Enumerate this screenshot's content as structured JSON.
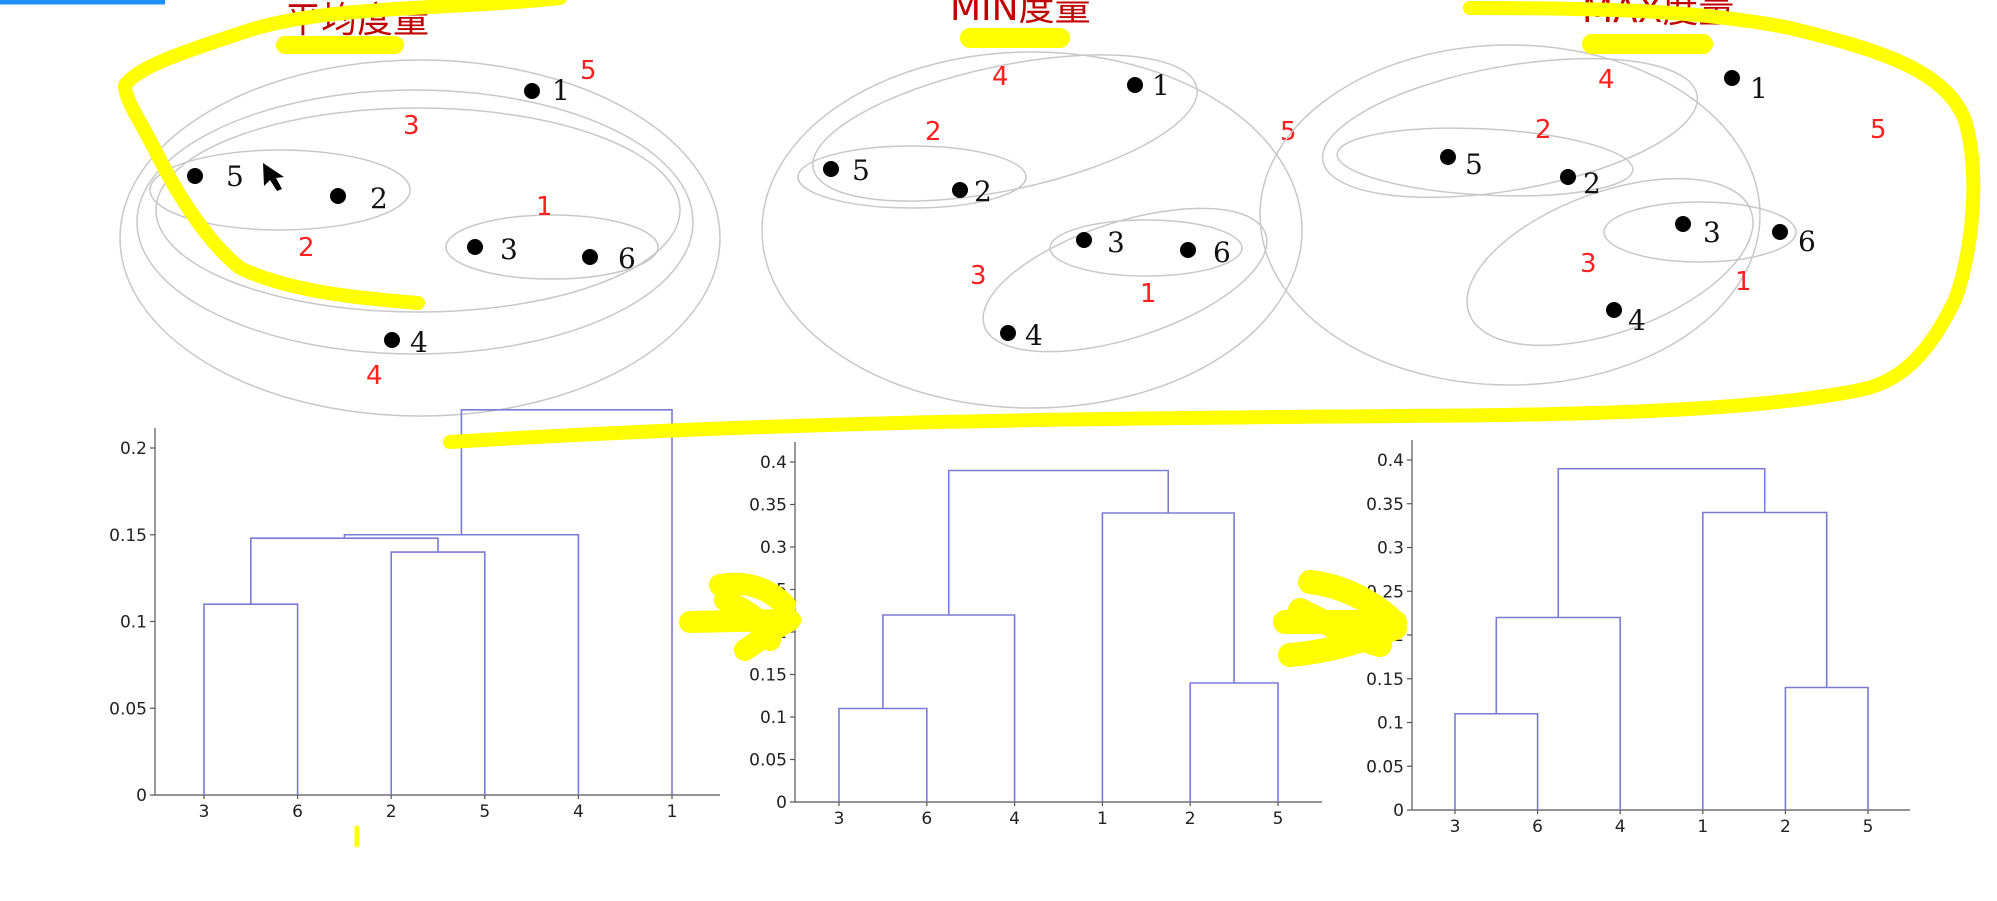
{
  "titles": [
    "平均度量",
    "MIN度量",
    "MAX度量"
  ],
  "panels": [
    {
      "name": "average",
      "points": [
        "1",
        "5",
        "2",
        "3",
        "6",
        "4"
      ],
      "merge_order_labels": [
        "5",
        "3",
        "1",
        "2",
        "4"
      ]
    },
    {
      "name": "min",
      "points": [
        "1",
        "5",
        "2",
        "3",
        "6",
        "4"
      ],
      "merge_order_labels": [
        "4",
        "2",
        "5",
        "3",
        "1"
      ]
    },
    {
      "name": "max",
      "points": [
        "1",
        "5",
        "2",
        "3",
        "6",
        "4"
      ],
      "merge_order_labels": [
        "4",
        "2",
        "5",
        "3",
        "1"
      ]
    }
  ],
  "chart_data": [
    {
      "type": "dendrogram",
      "leaves": [
        "3",
        "6",
        "2",
        "5",
        "4",
        "1"
      ],
      "yticks": [
        "0",
        "0.05",
        "0.1",
        "0.15",
        "0.2"
      ],
      "ylim": [
        0,
        0.2
      ],
      "merges": [
        {
          "a": "3",
          "b": "6",
          "height": 0.11
        },
        {
          "a": "2",
          "b": "5",
          "height": 0.14
        },
        {
          "a": "3,6",
          "b": "2,5",
          "height": 0.148
        },
        {
          "a": "3,6,2,5",
          "b": "4",
          "height": 0.15
        },
        {
          "a": "3,6,2,5,4",
          "b": "1",
          "height": 0.222
        }
      ]
    },
    {
      "type": "dendrogram",
      "leaves": [
        "3",
        "6",
        "4",
        "1",
        "2",
        "5"
      ],
      "yticks": [
        "0",
        "0.05",
        "0.1",
        "0.15",
        "0.2",
        "0.25",
        "0.3",
        "0.35",
        "0.4"
      ],
      "ylim": [
        0,
        0.4
      ],
      "merges": [
        {
          "a": "3",
          "b": "6",
          "height": 0.11
        },
        {
          "a": "2",
          "b": "5",
          "height": 0.14
        },
        {
          "a": "3,6",
          "b": "4",
          "height": 0.22
        },
        {
          "a": "1",
          "b": "2,5",
          "height": 0.34
        },
        {
          "a": "3,6,4",
          "b": "1,2,5",
          "height": 0.39
        }
      ]
    },
    {
      "type": "dendrogram",
      "leaves": [
        "3",
        "6",
        "4",
        "1",
        "2",
        "5"
      ],
      "yticks": [
        "0",
        "0.05",
        "0.1",
        "0.15",
        "0.2",
        "0.25",
        "0.3",
        "0.35",
        "0.4"
      ],
      "ylim": [
        0,
        0.4
      ],
      "merges": [
        {
          "a": "3",
          "b": "6",
          "height": 0.11
        },
        {
          "a": "2",
          "b": "5",
          "height": 0.14
        },
        {
          "a": "3,6",
          "b": "4",
          "height": 0.22
        },
        {
          "a": "1",
          "b": "2,5",
          "height": 0.34
        },
        {
          "a": "3,6,4",
          "b": "1,2,5",
          "height": 0.39
        }
      ]
    }
  ]
}
